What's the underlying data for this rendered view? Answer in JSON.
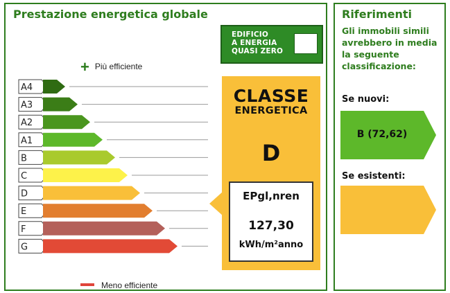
{
  "left_panel": {
    "title": "Prestazione energetica globale",
    "nzeb": {
      "lines": [
        "EDIFICIO",
        "A ENERGIA",
        "QUASI ZERO"
      ],
      "checked": false
    },
    "more_efficient": "Più efficiente",
    "less_efficient": "Meno efficiente",
    "classes": [
      {
        "label": "A4",
        "color": "#2f6b12"
      },
      {
        "label": "A3",
        "color": "#3b7d17"
      },
      {
        "label": "A2",
        "color": "#4a961e"
      },
      {
        "label": "A1",
        "color": "#5db82a"
      },
      {
        "label": "B",
        "color": "#a9ca2d"
      },
      {
        "label": "C",
        "color": "#fdf24a"
      },
      {
        "label": "D",
        "color": "#f9bf39"
      },
      {
        "label": "E",
        "color": "#e27e2f"
      },
      {
        "label": "F",
        "color": "#b4605a"
      },
      {
        "label": "G",
        "color": "#e24a36"
      }
    ],
    "classe_energetica": {
      "line1": "CLASSE",
      "line2": "ENERGETICA",
      "value": "D",
      "ep_label": "EPgl,nren",
      "ep_value": "127,30",
      "ep_unit": "kWh/m²anno",
      "box_color": "#f9bf39"
    }
  },
  "right_panel": {
    "title": "Riferimenti",
    "description": "Gli immobili simili avrebbero in media la seguente classificazione:",
    "new_label": "Se nuovi:",
    "new_value": "B (72,62)",
    "new_color": "#5db82a",
    "existing_label": "Se esistenti:",
    "existing_value": "",
    "existing_color": "#f9bf39"
  }
}
